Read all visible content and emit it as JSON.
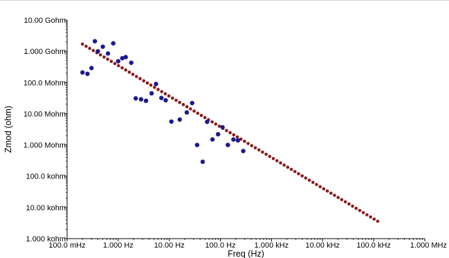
{
  "chart_data": {
    "type": "scatter",
    "title": "",
    "xlabel": "Freq (Hz)",
    "ylabel": "Zmod (ohm)",
    "x_scale": "log",
    "y_scale": "log",
    "xlim": [
      0.1,
      1000000
    ],
    "ylim": [
      1000,
      10000000000
    ],
    "grid": false,
    "legend": "none",
    "x_ticks": [
      {
        "value": 0.1,
        "label": "100.0 mHz"
      },
      {
        "value": 1,
        "label": "1.000 Hz"
      },
      {
        "value": 10,
        "label": "10.00 Hz"
      },
      {
        "value": 100,
        "label": "100.0 Hz"
      },
      {
        "value": 1000,
        "label": "1.000 kHz"
      },
      {
        "value": 10000,
        "label": "10.00 kHz"
      },
      {
        "value": 100000,
        "label": "100.0 kHz"
      },
      {
        "value": 1000000,
        "label": "1.000 MHz"
      }
    ],
    "y_ticks": [
      {
        "value": 1000,
        "label": "1.000 kohm"
      },
      {
        "value": 10000,
        "label": "10.00 kohm"
      },
      {
        "value": 100000,
        "label": "100.0 kohm"
      },
      {
        "value": 1000000,
        "label": "1.000 Mohm"
      },
      {
        "value": 10000000,
        "label": "10.00 Mohm"
      },
      {
        "value": 100000000,
        "label": "100.0 Mohm"
      },
      {
        "value": 1000000000,
        "label": "1.000 Gohm"
      },
      {
        "value": 10000000000,
        "label": "10.00 Gohm"
      }
    ],
    "series": [
      {
        "style": "markers",
        "color": "#1a1a8c",
        "points": [
          [
            0.2,
            210000000
          ],
          [
            0.25,
            190000000
          ],
          [
            0.3,
            290000000
          ],
          [
            0.35,
            2100000000
          ],
          [
            0.4,
            1000000000
          ],
          [
            0.5,
            1400000000
          ],
          [
            0.63,
            850000000
          ],
          [
            0.8,
            1800000000
          ],
          [
            1.0,
            480000000
          ],
          [
            1.2,
            600000000
          ],
          [
            1.4,
            650000000
          ],
          [
            1.8,
            430000000
          ],
          [
            2.2,
            31000000
          ],
          [
            2.8,
            29000000
          ],
          [
            3.5,
            26000000
          ],
          [
            4.5,
            45000000
          ],
          [
            5.5,
            90000000
          ],
          [
            7.0,
            32000000
          ],
          [
            8.5,
            27000000
          ],
          [
            11.0,
            5600000
          ],
          [
            16.0,
            6500000
          ],
          [
            22.0,
            11000000
          ],
          [
            28.0,
            22000000
          ],
          [
            35.0,
            1000000
          ],
          [
            45.0,
            290000
          ],
          [
            55.0,
            5500000
          ],
          [
            70.0,
            1500000
          ],
          [
            90.0,
            2200000
          ],
          [
            110.0,
            3700000
          ],
          [
            140.0,
            1000000
          ],
          [
            180.0,
            1500000
          ],
          [
            220.0,
            1400000
          ],
          [
            280.0,
            640000
          ]
        ]
      },
      {
        "style": "fit-line",
        "color": "#8b1a1a",
        "points": [
          [
            0.2,
            1700000000
          ],
          [
            120000,
            3600
          ]
        ]
      }
    ]
  },
  "colors": {
    "axis": "#000000",
    "marker": "#1a1a8c",
    "fit": "#8b1a1a"
  }
}
